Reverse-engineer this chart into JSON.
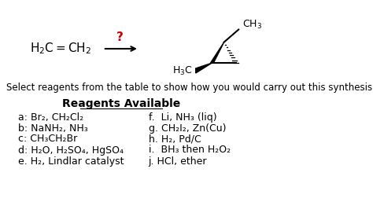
{
  "background_color": "#ffffff",
  "title_text": "Reagents Available",
  "subtitle": "Select reagents from the table to show how you would carry out this synthesis.",
  "reagents_left": [
    "a: Br₂, CH₂Cl₂",
    "b: NaNH₂, NH₃",
    "c: CH₃CH₂Br",
    "d: H₂O, H₂SO₄, HgSO₄",
    "e. H₂, Lindlar catalyst"
  ],
  "reagents_right": [
    "f.  Li, NH₃ (liq)",
    "g. CH₂I₂, Zn(Cu)",
    "h. H₂, Pd/C",
    "i.  BH₃ then H₂O₂",
    "j. HCl, ether"
  ],
  "question_mark_color": "#cc0000",
  "text_color": "#000000",
  "font_size_main": 9,
  "font_size_title": 10,
  "font_size_subtitle": 8.5
}
